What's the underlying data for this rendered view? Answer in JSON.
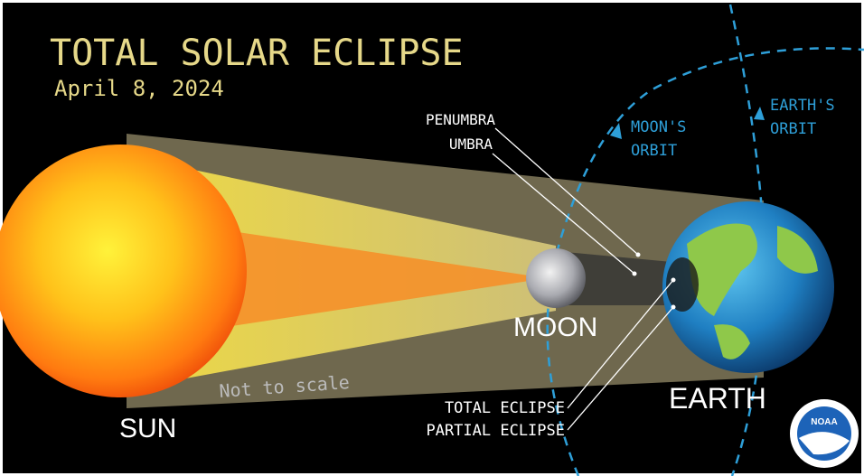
{
  "header": {
    "title": "TOTAL SOLAR ECLIPSE",
    "date": "April 8, 2024"
  },
  "labels": {
    "penumbra": "PENUMBRA",
    "umbra": "UMBRA",
    "moon_orbit": [
      "MOON'S",
      "ORBIT"
    ],
    "earth_orbit": [
      "EARTH'S",
      "ORBIT"
    ],
    "moon": "MOON",
    "sun": "SUN",
    "earth": "EARTH",
    "scale_note": "Not to scale",
    "total_eclipse": "TOTAL ECLIPSE",
    "partial_eclipse": "PARTIAL ECLIPSE"
  },
  "logo": {
    "text": "NOAA"
  }
}
